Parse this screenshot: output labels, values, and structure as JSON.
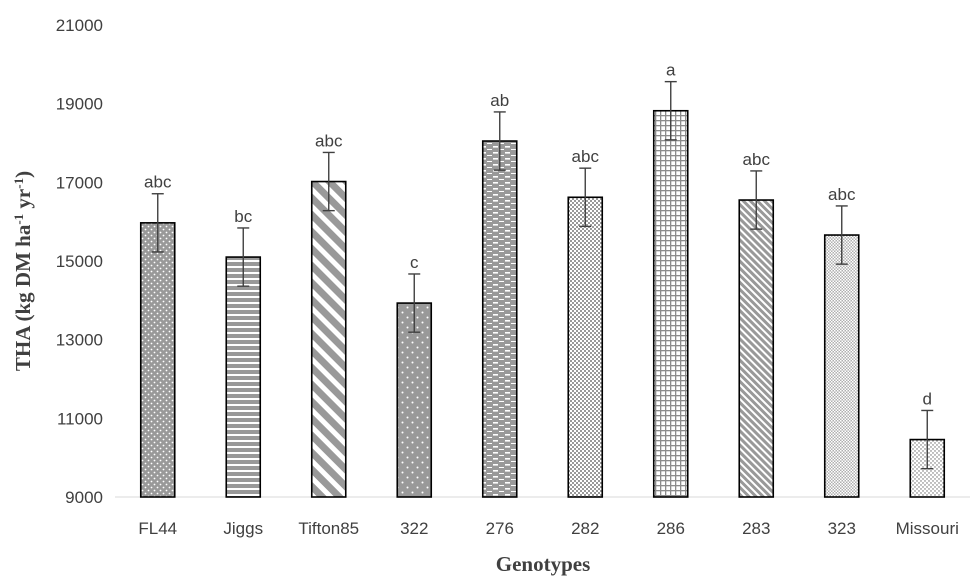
{
  "chart_data": {
    "type": "bar",
    "title": "",
    "xlabel": "Genotypes",
    "ylabel_parts": [
      {
        "text": "THA (kg DM ha",
        "sup": false
      },
      {
        "text": "-1",
        "sup": true
      },
      {
        "text": " yr",
        "sup": false
      },
      {
        "text": "-1",
        "sup": true
      },
      {
        "text": ")",
        "sup": false
      }
    ],
    "ylim": [
      9000,
      21000
    ],
    "yticks": [
      9000,
      11000,
      13000,
      15000,
      17000,
      19000,
      21000
    ],
    "grid": false,
    "legend": "none",
    "bar_color": "#999999",
    "categories": [
      "FL44",
      "Jiggs",
      "Tifton85",
      "322",
      "276",
      "282",
      "286",
      "283",
      "323",
      "Missouri"
    ],
    "values": [
      15970,
      15100,
      17020,
      13930,
      18050,
      16620,
      18820,
      16550,
      15660,
      10460
    ],
    "error": [
      740,
      740,
      740,
      740,
      740,
      740,
      740,
      740,
      740,
      740
    ],
    "labels": [
      "abc",
      "bc",
      "abc",
      "c",
      "ab",
      "abc",
      "a",
      "abc",
      "abc",
      "d"
    ],
    "patterns": [
      "dots-small",
      "horizontal-lines",
      "diagonal-wide",
      "dots-sparse",
      "dashes",
      "checker-small",
      "grid",
      "diagonal-fine",
      "checker-fine",
      "dots-fine"
    ]
  }
}
